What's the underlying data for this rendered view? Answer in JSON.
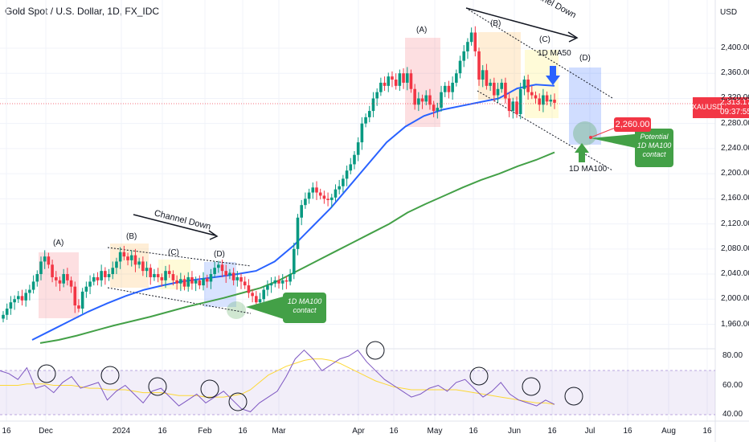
{
  "header": {
    "title": "Gold Spot / U.S. Dollar, 1D, FX_IDC",
    "currency": "USD"
  },
  "price_tag": {
    "symbol": "XAUUSD",
    "price": "2,313.17",
    "countdown": "09:37:55"
  },
  "annotations": {
    "channel_down_1": "Channel Down",
    "channel_down_2": "Channel Down",
    "wave_labels_1": [
      "(A)",
      "(B)",
      "(C)",
      "(D)"
    ],
    "wave_labels_2": [
      "(A)",
      "(B)",
      "(C)",
      "(D)"
    ],
    "ma50_label": "1D MA50",
    "ma100_label": "1D MA100",
    "contact_1": "1D MA100\ncontact",
    "contact_2": "Potential\n1D MA100\ncontact",
    "target": "2,260.00"
  },
  "colors": {
    "up": "#089981",
    "down": "#f23645",
    "ma50": "#2962ff",
    "ma100": "#43a047",
    "rsi": "#7e57c2",
    "rsi_ma": "#fdd835"
  },
  "chart_data": {
    "type": "candlestick",
    "title": "Gold Spot / U.S. Dollar, 1D, FX_IDC",
    "y_axis": {
      "ticks": [
        1960,
        2000,
        2040,
        2080,
        2120,
        2160,
        2200,
        2240,
        2280,
        2320,
        2360,
        2400
      ],
      "tick_labels": [
        "1,960.00",
        "2,000.00",
        "2,040.00",
        "2,080.00",
        "2,120.00",
        "2,160.00",
        "2,200.00",
        "2,240.00",
        "2,280.00",
        "2,320.00",
        "2,360.00",
        "2,400.00"
      ],
      "range": [
        1940,
        2450
      ]
    },
    "x_axis": {
      "tick_labels": [
        "16",
        "Dec",
        "2024",
        "16",
        "Feb",
        "16",
        "Mar",
        "Apr",
        "16",
        "May",
        "16",
        "Jun",
        "16",
        "Jul",
        "16",
        "Aug",
        "16"
      ]
    },
    "close": [
      1975,
      1985,
      1995,
      2000,
      2005,
      1998,
      2010,
      2015,
      2028,
      2040,
      2060,
      2068,
      2055,
      2035,
      2030,
      2025,
      2040,
      2030,
      2020,
      1990,
      1985,
      2012,
      2020,
      2028,
      2035,
      2030,
      2045,
      2035,
      2040,
      2050,
      2060,
      2075,
      2068,
      2062,
      2070,
      2055,
      2060,
      2045,
      2050,
      2035,
      2040,
      2035,
      2030,
      2045,
      2040,
      2030,
      2025,
      2032,
      2020,
      2035,
      2025,
      2030,
      2022,
      2033,
      2028,
      2040,
      2050,
      2055,
      2045,
      2038,
      2042,
      2030,
      2035,
      2028,
      2022,
      2010,
      2005,
      1995,
      2000,
      2015,
      2022,
      2025,
      2030,
      2025,
      2030,
      2028,
      2040,
      2080,
      2130,
      2150,
      2160,
      2170,
      2178,
      2170,
      2165,
      2160,
      2158,
      2162,
      2175,
      2180,
      2192,
      2205,
      2215,
      2230,
      2250,
      2280,
      2290,
      2300,
      2320,
      2330,
      2345,
      2340,
      2355,
      2350,
      2340,
      2360,
      2345,
      2360,
      2335,
      2310,
      2320,
      2315,
      2325,
      2310,
      2300,
      2305,
      2330,
      2340,
      2330,
      2345,
      2360,
      2380,
      2395,
      2410,
      2425,
      2395,
      2350,
      2365,
      2340,
      2345,
      2325,
      2335,
      2345,
      2320,
      2300,
      2315,
      2295,
      2335,
      2350,
      2330,
      2325,
      2320,
      2310,
      2325,
      2315,
      2318,
      2313
    ],
    "series": [
      {
        "name": "1D MA50",
        "values": [
          1935,
          1950,
          1965,
          1980,
          1993,
          2005,
          2015,
          2022,
          2028,
          2032,
          2036,
          2040,
          2045,
          2060,
          2085,
          2115,
          2145,
          2180,
          2215,
          2250,
          2275,
          2292,
          2302,
          2308,
          2314,
          2320,
          2336,
          2342,
          2340
        ]
      },
      {
        "name": "1D MA100",
        "values": [
          1930,
          1935,
          1942,
          1950,
          1958,
          1965,
          1972,
          1980,
          1988,
          1995,
          2002,
          2010,
          2018,
          2030,
          2045,
          2060,
          2075,
          2090,
          2105,
          2120,
          2138,
          2152,
          2165,
          2178,
          2190,
          2200,
          2212,
          2222,
          2234
        ]
      }
    ],
    "rsi": {
      "ticks": [
        40,
        60,
        80
      ],
      "tick_labels": [
        "40.00",
        "60.00",
        "80.00"
      ],
      "band": [
        30,
        70
      ]
    }
  }
}
